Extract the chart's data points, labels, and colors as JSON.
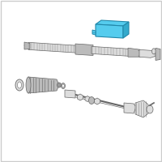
{
  "background_color": "#ffffff",
  "border_color": "#cccccc",
  "line_color": "#666666",
  "fill_light": "#dddddd",
  "fill_mid": "#bbbbbb",
  "fill_dark": "#999999",
  "highlight_color": "#55ccee",
  "highlight_dark": "#33aacc",
  "highlight_darker": "#2288aa",
  "fig_width": 2.0,
  "fig_height": 2.0,
  "dpi": 100
}
